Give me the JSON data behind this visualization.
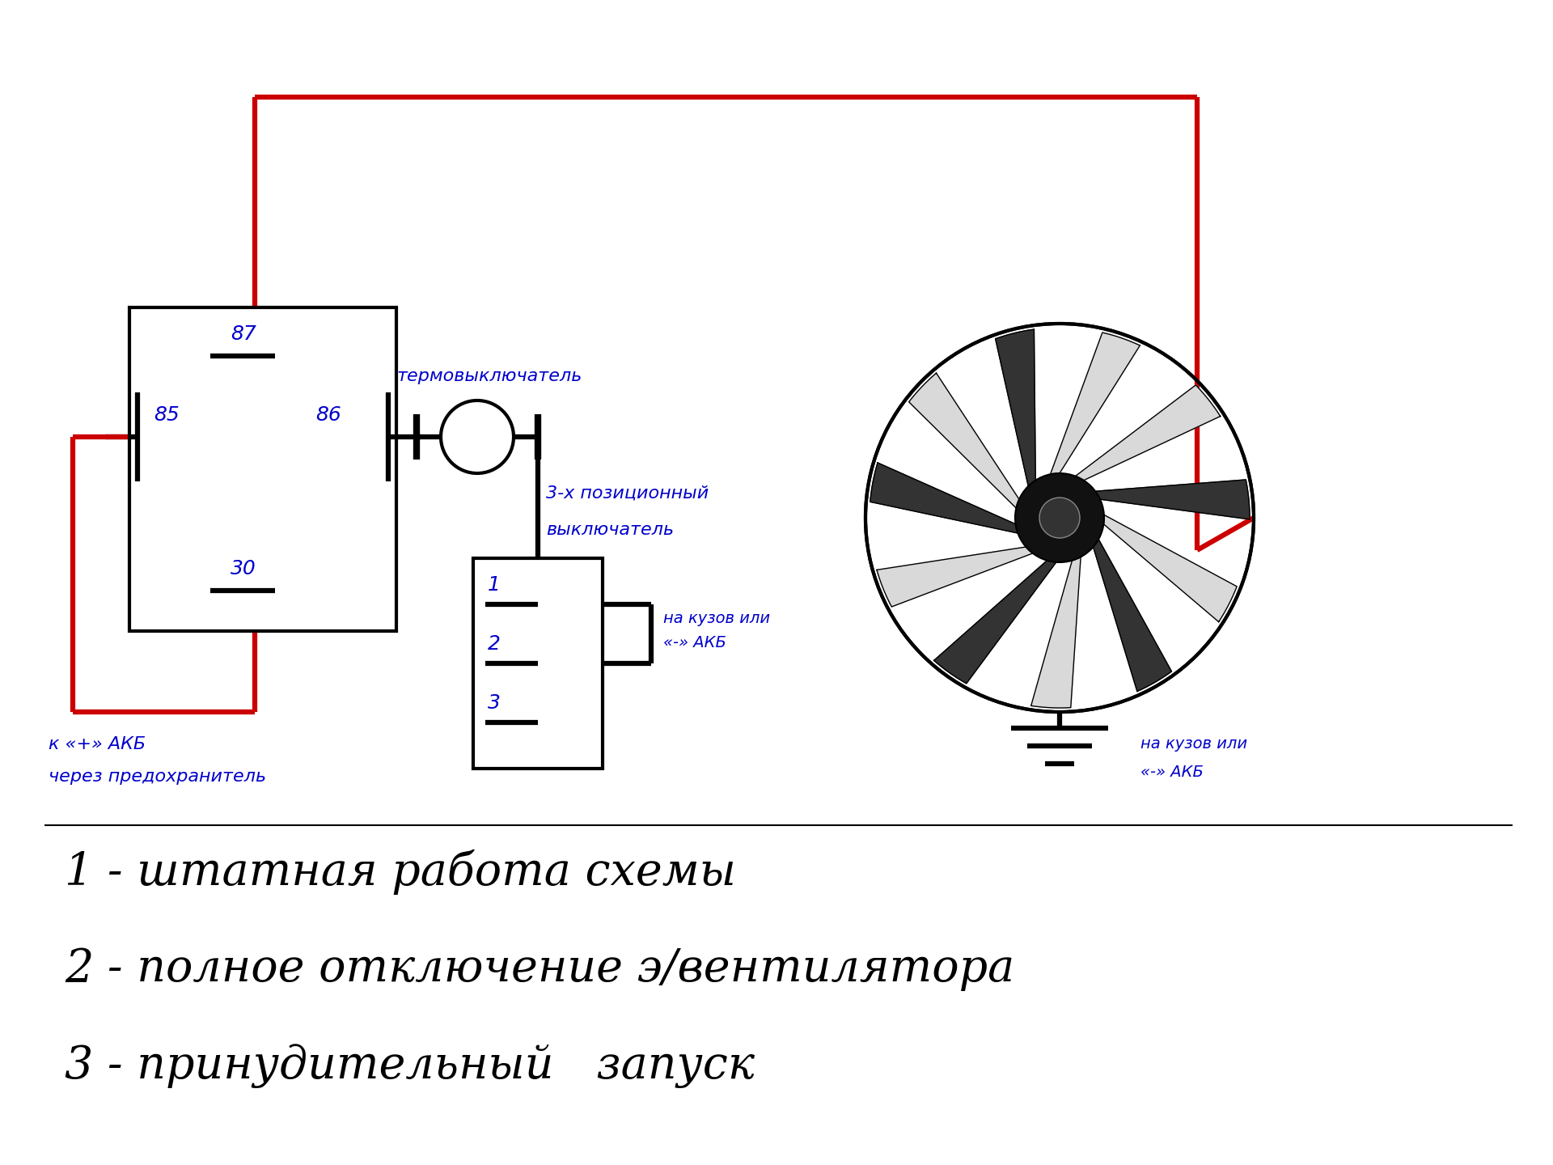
{
  "bg_color": "#ffffff",
  "red_color": "#cc0000",
  "black_color": "#000000",
  "blue_color": "#0000cc",
  "label_87": "87",
  "label_85": "85",
  "label_86": "86",
  "label_30": "30",
  "text_thermoswitch": "термовыключатель",
  "text_3pos_line1": "3-х позиционный",
  "text_3pos_line2": "выключатель",
  "text_akb_plus_line1": "к «+» АКБ",
  "text_akb_plus_line2": "через предохранитель",
  "text_body1_line1": "на кузов или",
  "text_body1_line2": "«-» АКБ",
  "text_body2_line1": "на кузов или",
  "text_body2_line2": "«-» АКБ",
  "text_legend1": "1 - штатная работа схемы",
  "text_legend2": "2 - полное отключение э/вентилятора",
  "text_legend3": "3 - принудительный   запуск",
  "sw_label_1": "1",
  "sw_label_2": "2",
  "sw_label_3": "3"
}
